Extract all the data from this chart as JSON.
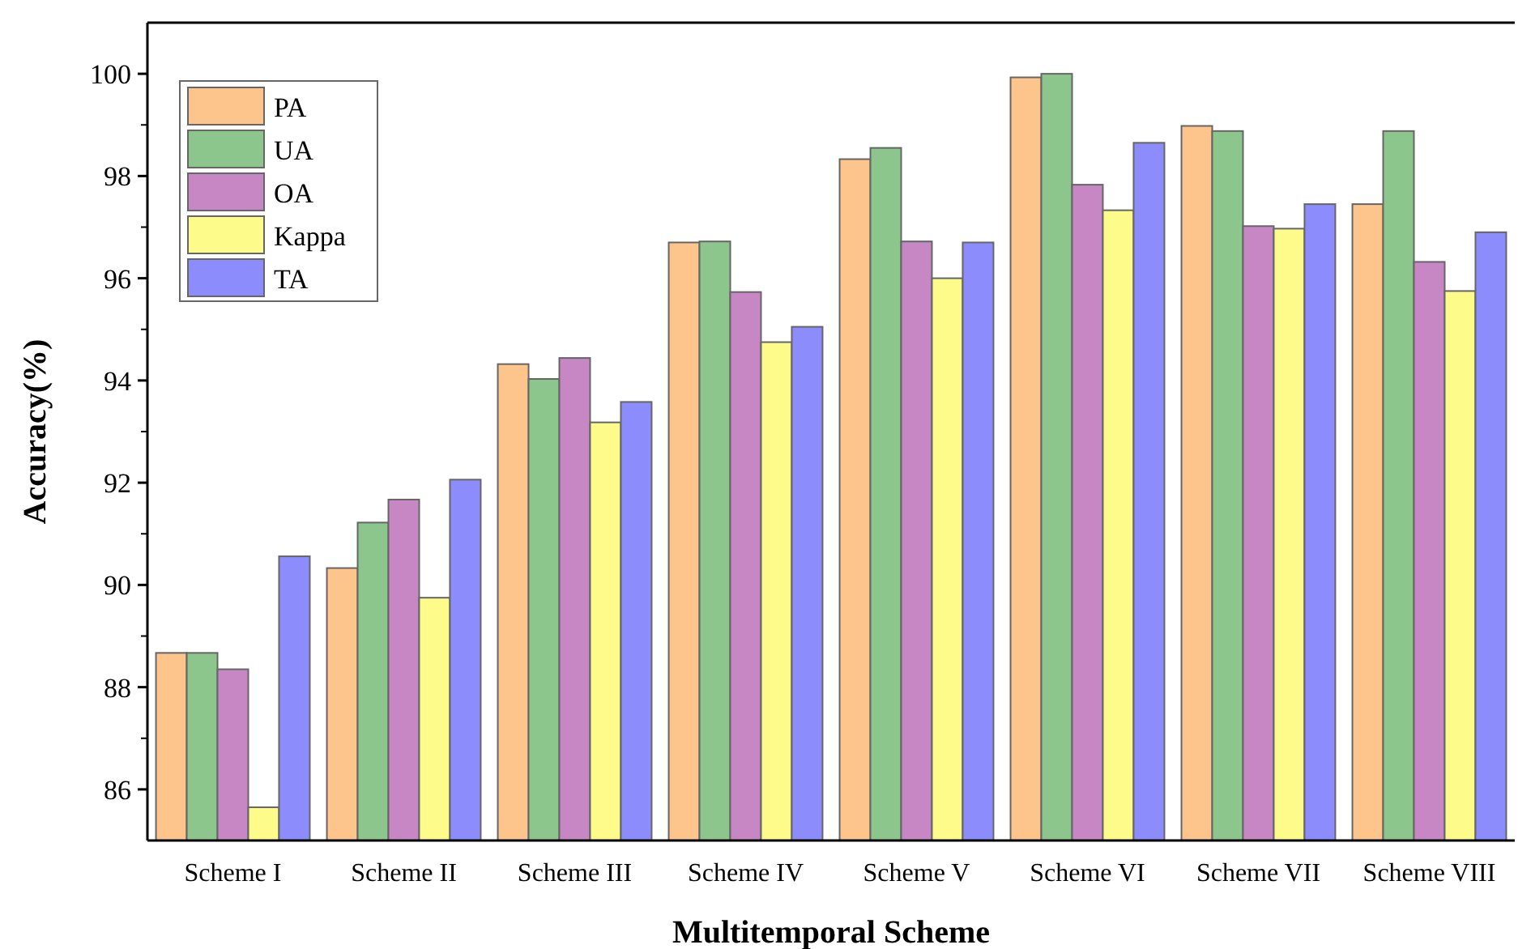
{
  "chart_data": {
    "type": "bar",
    "xlabel": "Multitemporal Scheme",
    "ylabel": "Accuracy(%)",
    "categories": [
      "Scheme I",
      "Scheme II",
      "Scheme III",
      "Scheme IV",
      "Scheme V",
      "Scheme VI",
      "Scheme VII",
      "Scheme VIII"
    ],
    "series": [
      {
        "name": "PA",
        "color": "#fdc48b",
        "values": [
          88.67,
          90.33,
          94.32,
          96.7,
          98.33,
          99.93,
          98.98,
          97.45
        ]
      },
      {
        "name": "UA",
        "color": "#8cc68c",
        "values": [
          88.67,
          91.22,
          94.03,
          96.72,
          98.55,
          100.0,
          98.88,
          98.88
        ]
      },
      {
        "name": "OA",
        "color": "#c687c4",
        "values": [
          88.35,
          91.67,
          94.44,
          95.73,
          96.72,
          97.83,
          97.02,
          96.32
        ]
      },
      {
        "name": "Kappa",
        "color": "#fdfb8a",
        "values": [
          85.65,
          89.75,
          93.18,
          94.75,
          96.0,
          97.33,
          96.97,
          95.75
        ]
      },
      {
        "name": "TA",
        "color": "#8c8cfc",
        "values": [
          90.56,
          92.06,
          93.58,
          95.05,
          96.7,
          98.65,
          97.45,
          96.9
        ]
      }
    ],
    "ylim": [
      85,
      101
    ],
    "yticks": [
      86,
      88,
      90,
      92,
      94,
      96,
      98,
      100
    ],
    "grid": false,
    "legend": "top left"
  }
}
